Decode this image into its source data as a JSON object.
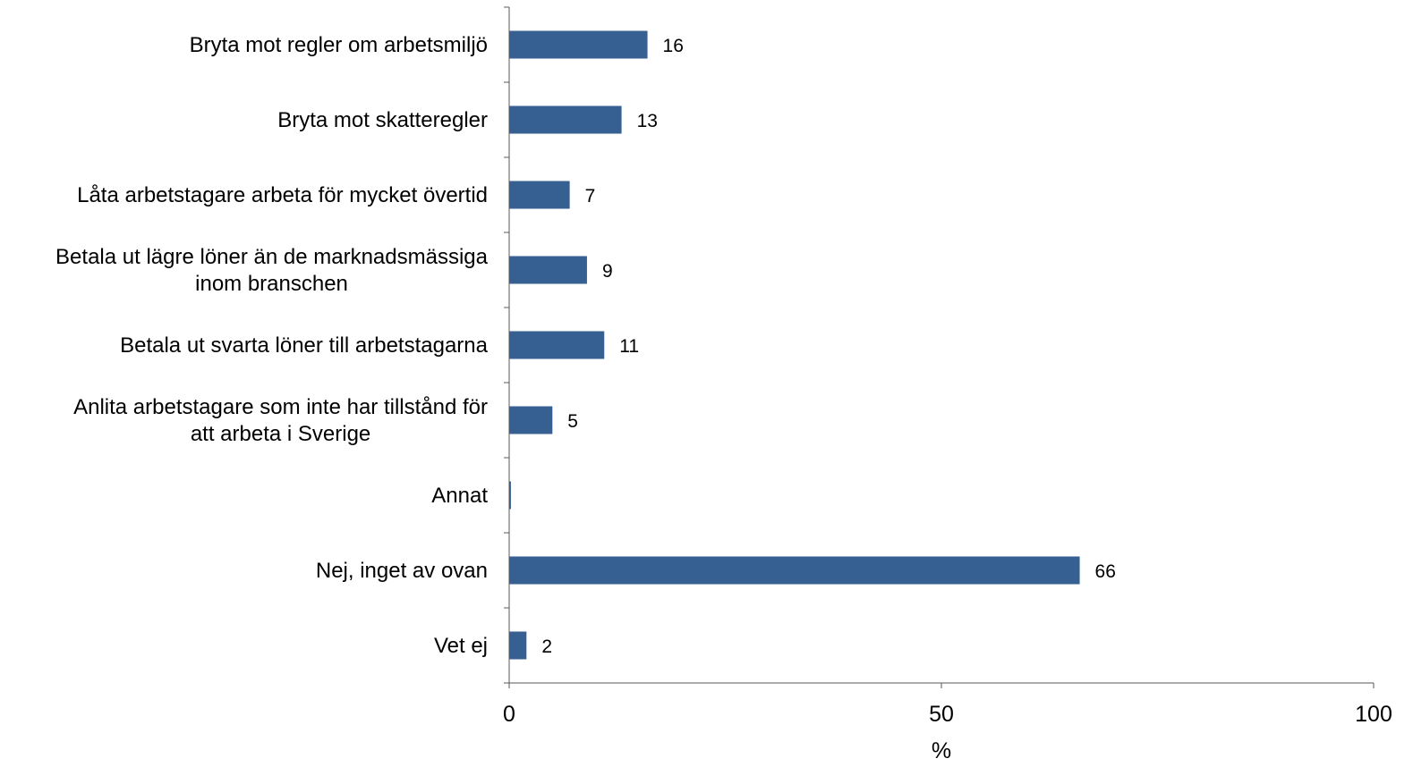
{
  "chart_data": {
    "type": "bar",
    "orientation": "horizontal",
    "categories": [
      [
        "Bryta mot regler om arbetsmiljö"
      ],
      [
        "Bryta mot skatteregler"
      ],
      [
        "Låta arbetstagare arbeta för mycket övertid"
      ],
      [
        "Betala ut lägre löner än de marknadsmässiga",
        "inom branschen"
      ],
      [
        "Betala ut svarta löner till arbetstagarna"
      ],
      [
        "Anlita arbetstagare som inte har tillstånd för",
        "att arbeta i Sverige"
      ],
      [
        "Annat"
      ],
      [
        "Nej, inget av ovan"
      ],
      [
        "Vet ej"
      ]
    ],
    "values": [
      16,
      13,
      7,
      9,
      11,
      5,
      0.2,
      66,
      2
    ],
    "value_labels": [
      "16",
      "13",
      "7",
      "9",
      "11",
      "5",
      "",
      "66",
      "2"
    ],
    "xlim": [
      0,
      100
    ],
    "xticks": [
      0,
      50,
      100
    ],
    "xtick_labels": [
      "0",
      "50",
      "100"
    ],
    "xlabel": "%",
    "ylabel": "",
    "title": "",
    "grid": false,
    "legend": "none",
    "bar_color": "#376092",
    "axis_color": "#595959"
  }
}
